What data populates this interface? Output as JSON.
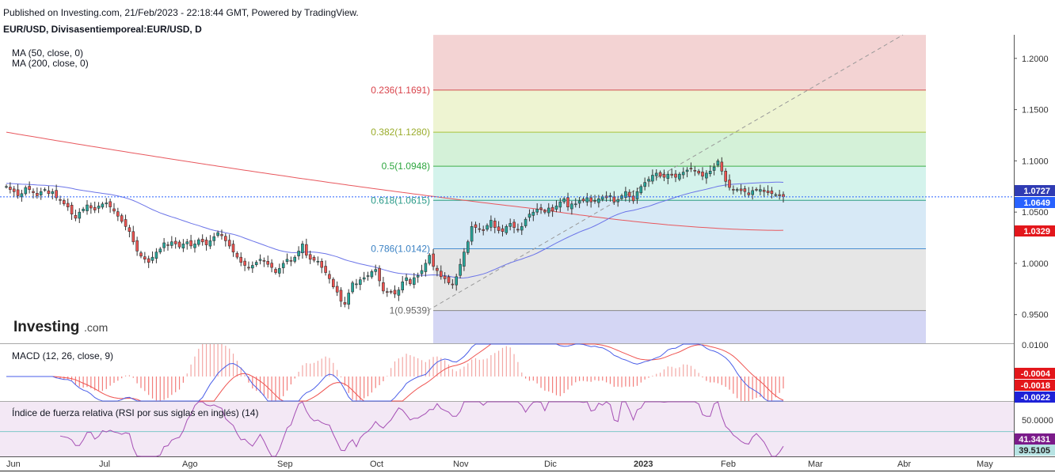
{
  "header": {
    "published": "Published on Investing.com, 21/Feb/2023 - 22:18:44 GMT, Powered by TradingView.",
    "symbol": "EUR/USD, Divisasentiemporeal:EUR/USD, D"
  },
  "brand": {
    "name": "Investing",
    "suffix": ".com"
  },
  "indicators": {
    "ma50": "MA (50, close, 0)",
    "ma200": "MA (200, close, 0)",
    "macd": "MACD (12, 26, close, 9)",
    "rsi": "Índice de fuerza relativa (RSI por sus siglas en inglés) (14)"
  },
  "colors": {
    "up": "#26a69a",
    "down": "#ef5350",
    "ma50": "#6b74e8",
    "ma200": "#e8585e",
    "price_line": "#2962ff",
    "rsi": "#a54fb4"
  },
  "chart_data": [
    {
      "type": "candlestick",
      "title": "EUR/USD, Divisasentiemporeal:EUR/USD, D",
      "x_ticks": [
        "Jun",
        "Jul",
        "Ago",
        "Sep",
        "Oct",
        "Nov",
        "Dic",
        "2023",
        "Feb",
        "Mar",
        "Abr",
        "May"
      ],
      "y_ticks": [
        "1.2000",
        "1.1500",
        "1.1000",
        "1.0500",
        "1.0000",
        "0.9500"
      ],
      "ylim": [
        0.922,
        1.223
      ],
      "grid": false,
      "close": [
        1.075,
        1.072,
        1.07,
        1.066,
        1.068,
        1.074,
        1.072,
        1.069,
        1.066,
        1.07,
        1.072,
        1.068,
        1.07,
        1.064,
        1.062,
        1.058,
        1.055,
        1.048,
        1.044,
        1.05,
        1.053,
        1.057,
        1.054,
        1.052,
        1.056,
        1.058,
        1.059,
        1.055,
        1.051,
        1.046,
        1.041,
        1.036,
        1.031,
        1.021,
        1.012,
        1.007,
        1.004,
        1.001,
        1.006,
        1.011,
        1.014,
        1.02,
        1.018,
        1.021,
        1.019,
        1.016,
        1.019,
        1.021,
        1.017,
        1.019,
        1.023,
        1.021,
        1.018,
        1.022,
        1.026,
        1.03,
        1.027,
        1.022,
        1.017,
        1.011,
        1.006,
        1.001,
        0.998,
        0.996,
        0.998,
        1.001,
        1.004,
        1.002,
        0.999,
        0.996,
        0.991,
        0.995,
        1.0,
        1.004,
        1.002,
        1.006,
        1.012,
        1.019,
        1.008,
        1.004,
        1.003,
        1.002,
        0.996,
        0.991,
        0.985,
        0.977,
        0.972,
        0.963,
        0.96,
        0.971,
        0.981,
        0.98,
        0.984,
        0.986,
        0.988,
        0.992,
        0.994,
        0.983,
        0.973,
        0.972,
        0.972,
        0.97,
        0.974,
        0.982,
        0.986,
        0.98,
        0.986,
        0.988,
        0.993,
        1.0,
        1.008,
        0.997,
        0.993,
        0.987,
        0.985,
        0.981,
        0.979,
        0.987,
        0.999,
        1.011,
        1.021,
        1.036,
        1.035,
        1.033,
        1.032,
        1.037,
        1.042,
        1.035,
        1.032,
        1.031,
        1.036,
        1.039,
        1.035,
        1.033,
        1.036,
        1.043,
        1.048,
        1.05,
        1.053,
        1.053,
        1.05,
        1.054,
        1.051,
        1.056,
        1.06,
        1.063,
        1.055,
        1.058,
        1.058,
        1.061,
        1.061,
        1.064,
        1.06,
        1.061,
        1.063,
        1.065,
        1.064,
        1.066,
        1.06,
        1.062,
        1.066,
        1.07,
        1.065,
        1.061,
        1.07,
        1.075,
        1.079,
        1.082,
        1.086,
        1.088,
        1.085,
        1.084,
        1.087,
        1.086,
        1.084,
        1.087,
        1.089,
        1.091,
        1.092,
        1.09,
        1.088,
        1.085,
        1.088,
        1.09,
        1.094,
        1.1,
        1.09,
        1.08,
        1.074,
        1.072,
        1.072,
        1.071,
        1.07,
        1.067,
        1.071,
        1.072,
        1.072,
        1.07,
        1.069,
        1.068,
        1.067,
        1.066,
        1.065
      ],
      "ma50_endpoints": {
        "start": 1.078,
        "low": 0.99,
        "end": 1.0727
      },
      "ma200_endpoints": {
        "start": 1.128,
        "end": 1.0329
      },
      "price_labels": {
        "ma50": "1.0727",
        "last": "1.0649",
        "ma200": "1.0329"
      },
      "fibonacci": [
        {
          "label": "0.236(1.1691)",
          "level": 1.1691
        },
        {
          "label": "0.382(1.1280)",
          "level": 1.128
        },
        {
          "label": "0.5(1.0948)",
          "level": 1.0948
        },
        {
          "label": "0.618(1.0615)",
          "level": 1.0615
        },
        {
          "label": "0.786(1.0142)",
          "level": 1.0142
        },
        {
          "label": "1(0.9539)",
          "level": 0.9539
        }
      ]
    },
    {
      "type": "line",
      "title": "MACD (12, 26, close, 9)",
      "y_ticks": [
        "0.0100"
      ],
      "price_labels": [
        "-0.0004",
        "-0.0018",
        "-0.0022"
      ],
      "series": [
        {
          "name": "MACD"
        },
        {
          "name": "Signal"
        }
      ]
    },
    {
      "type": "line",
      "title": "Índice de fuerza relativa (RSI por sus siglas en inglés) (14)",
      "y_ticks": [
        "50.0000"
      ],
      "price_labels": [
        "41.3431",
        "39.5105"
      ]
    }
  ]
}
